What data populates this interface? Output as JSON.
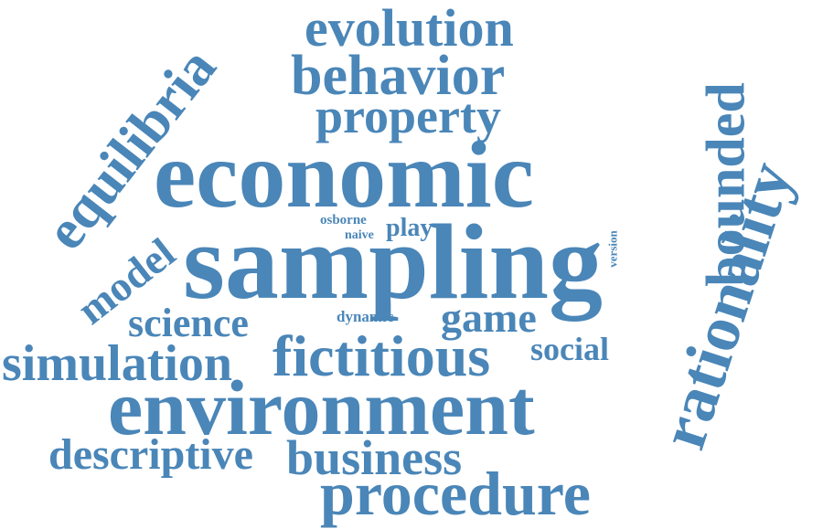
{
  "color": "#4a86b8",
  "background": "#ffffff",
  "words": {
    "evolution": "evolution",
    "behavior": "behavior",
    "property": "property",
    "equilibria": "equilibria",
    "economic": "economic",
    "bounded": "bounded",
    "rationality": "rationality",
    "osborne": "osborne",
    "naive": "naive",
    "play": "play",
    "version": "version",
    "sampling": "sampling",
    "model": "model",
    "science": "science",
    "dynamic": "dynamic",
    "game": "game",
    "social": "social",
    "simulation": "simulation",
    "fictitious": "fictitious",
    "environment": "environment",
    "descriptive": "descriptive",
    "business": "business",
    "procedure": "procedure"
  }
}
